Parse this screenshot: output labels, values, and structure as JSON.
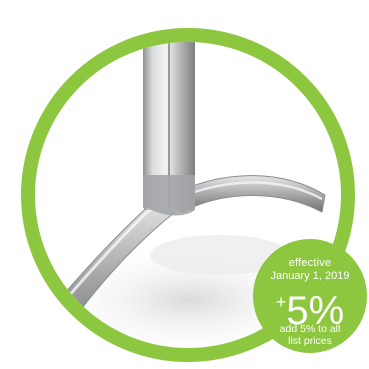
{
  "product_image": {
    "subject": "stand-base-closeup",
    "ring_color": "#8dc63f",
    "metal_color": "#a9abad"
  },
  "badge": {
    "line1": "effective",
    "line2": "January 1, 2019",
    "plus": "+",
    "value": "5%",
    "line3": "add 5% to all",
    "line4": "list prices",
    "color": "#8dc63f"
  }
}
